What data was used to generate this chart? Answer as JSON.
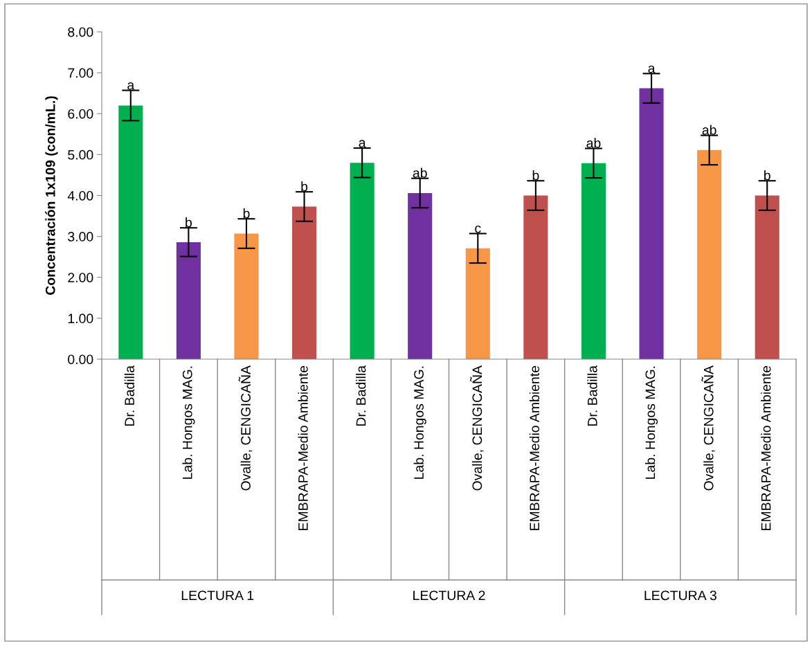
{
  "chart_data": {
    "type": "bar",
    "ylabel": "Concentración 1x109 (con/mL.)",
    "categories": [
      "Dr. Badilla",
      "Lab. Hongos MAG.",
      "Ovalle, CENGICAÑA",
      "EMBRAPA-Medio Ambiente",
      "Dr. Badilla",
      "Lab. Hongos MAG.",
      "Ovalle, CENGICAÑA",
      "EMBRAPA-Medio Ambiente",
      "Dr. Badilla",
      "Lab. Hongos MAG.",
      "Ovalle, CENGICAÑA",
      "EMBRAPA-Medio Ambiente"
    ],
    "values": [
      6.2,
      2.86,
      3.07,
      3.73,
      4.8,
      4.06,
      2.71,
      4.0,
      4.79,
      6.62,
      5.11,
      4.0
    ],
    "errors": [
      0.37,
      0.35,
      0.36,
      0.36,
      0.36,
      0.36,
      0.36,
      0.36,
      0.36,
      0.36,
      0.36,
      0.36
    ],
    "colors": [
      "#00b050",
      "#7030a0",
      "#f79646",
      "#c0504d",
      "#00b050",
      "#7030a0",
      "#f79646",
      "#c0504d",
      "#00b050",
      "#7030a0",
      "#f79646",
      "#c0504d"
    ],
    "value_labels": [
      "a",
      "b",
      "b",
      "b",
      "a",
      "ab",
      "c",
      "b",
      "ab",
      "a",
      "ab",
      "b"
    ],
    "annotations": [
      "LECTURA 1",
      "LECTURA 2",
      "LECTURA 3"
    ],
    "ylim": [
      0,
      8
    ],
    "yticks": [
      {
        "value": 0,
        "label": "0.00"
      },
      {
        "value": 1,
        "label": "1.00"
      },
      {
        "value": 2,
        "label": "2.00"
      },
      {
        "value": 3,
        "label": "3.00"
      },
      {
        "value": 4,
        "label": "4.00"
      },
      {
        "value": 5,
        "label": "5.00"
      },
      {
        "value": 6,
        "label": "6.00"
      },
      {
        "value": 7,
        "label": "7.00"
      },
      {
        "value": 8,
        "label": "8.00"
      }
    ],
    "grid": false,
    "legend": false
  }
}
